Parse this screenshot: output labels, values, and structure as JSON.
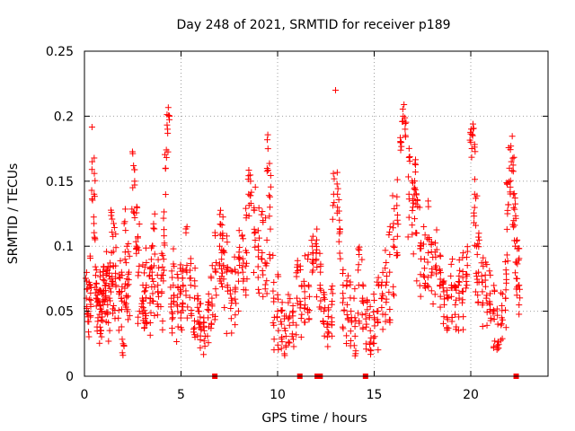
{
  "chart_data": {
    "type": "scatter",
    "title": "Day 248 of 2021, SRMTID for receiver p189",
    "xlabel": "GPS time / hours",
    "ylabel": "SRMTID / TECUs",
    "xlim": [
      0,
      24
    ],
    "ylim": [
      0,
      0.25
    ],
    "x_ticks": [
      0,
      5,
      10,
      15,
      20
    ],
    "x_tick_labels": [
      "0",
      "5",
      "10",
      "15",
      "20"
    ],
    "y_ticks": [
      0,
      0.05,
      0.1,
      0.15,
      0.2,
      0.25
    ],
    "y_tick_labels": [
      "0",
      "0.05",
      "0.1",
      "0.15",
      "0.2",
      "0.25"
    ],
    "grid": true,
    "marker": "plus",
    "color": "#ff0000",
    "series": [
      {
        "name": "SRMTID",
        "x": [
          0.1,
          0.2,
          0.3,
          0.4,
          0.5,
          0.55,
          0.6,
          0.7,
          0.8,
          0.9,
          1.0,
          1.1,
          1.2,
          1.3,
          1.4,
          1.5,
          1.6,
          1.8,
          1.9,
          2.0,
          2.1,
          2.2,
          2.3,
          2.5,
          2.6,
          2.7,
          2.8,
          3.0,
          3.1,
          3.2,
          3.4,
          3.5,
          3.6,
          3.8,
          4.0,
          4.1,
          4.2,
          4.3,
          4.4,
          4.5,
          4.6,
          4.8,
          5.0,
          5.1,
          5.3,
          5.5,
          5.7,
          5.9,
          6.0,
          6.2,
          6.4,
          6.6,
          6.8,
          7.0,
          7.1,
          7.2,
          7.4,
          7.6,
          7.8,
          8.0,
          8.2,
          8.4,
          8.5,
          8.6,
          8.8,
          9.0,
          9.2,
          9.4,
          9.5,
          9.6,
          9.8,
          10.0,
          10.2,
          10.4,
          10.6,
          10.8,
          11.0,
          11.2,
          11.4,
          11.6,
          11.8,
          12.0,
          12.2,
          12.4,
          12.6,
          12.8,
          12.9,
          13.0,
          13.1,
          13.2,
          13.4,
          13.6,
          13.8,
          14.0,
          14.2,
          14.4,
          14.6,
          14.8,
          15.0,
          15.2,
          15.4,
          15.6,
          15.8,
          16.0,
          16.2,
          16.4,
          16.5,
          16.6,
          16.8,
          17.0,
          17.1,
          17.2,
          17.4,
          17.6,
          17.8,
          18.0,
          18.2,
          18.4,
          18.6,
          18.8,
          19.0,
          19.2,
          19.4,
          19.6,
          19.8,
          20.0,
          20.1,
          20.2,
          20.3,
          20.4,
          20.6,
          20.8,
          21.0,
          21.2,
          21.4,
          21.6,
          21.8,
          21.9,
          22.0,
          22.1,
          22.2,
          22.3,
          22.4,
          22.5
        ],
        "y": [
          0.06,
          0.05,
          0.07,
          0.165,
          0.14,
          0.105,
          0.06,
          0.045,
          0.055,
          0.05,
          0.065,
          0.07,
          0.055,
          0.06,
          0.095,
          0.085,
          0.075,
          0.065,
          0.06,
          0.025,
          0.09,
          0.075,
          0.08,
          0.145,
          0.15,
          0.1,
          0.08,
          0.06,
          0.065,
          0.07,
          0.06,
          0.08,
          0.085,
          0.07,
          0.065,
          0.09,
          0.16,
          0.19,
          0.2,
          0.06,
          0.07,
          0.055,
          0.065,
          0.07,
          0.08,
          0.07,
          0.06,
          0.05,
          0.04,
          0.035,
          0.045,
          0.06,
          0.08,
          0.1,
          0.09,
          0.085,
          0.07,
          0.06,
          0.065,
          0.09,
          0.08,
          0.095,
          0.14,
          0.15,
          0.11,
          0.1,
          0.095,
          0.085,
          0.175,
          0.13,
          0.06,
          0.05,
          0.04,
          0.035,
          0.045,
          0.05,
          0.06,
          0.055,
          0.065,
          0.07,
          0.1,
          0.09,
          0.07,
          0.05,
          0.04,
          0.045,
          0.14,
          0.22,
          0.14,
          0.12,
          0.06,
          0.055,
          0.05,
          0.045,
          0.07,
          0.06,
          0.04,
          0.035,
          0.045,
          0.05,
          0.06,
          0.07,
          0.08,
          0.1,
          0.12,
          0.18,
          0.2,
          0.19,
          0.14,
          0.13,
          0.145,
          0.11,
          0.1,
          0.09,
          0.095,
          0.08,
          0.085,
          0.07,
          0.065,
          0.06,
          0.07,
          0.055,
          0.06,
          0.065,
          0.07,
          0.18,
          0.185,
          0.14,
          0.1,
          0.08,
          0.065,
          0.06,
          0.055,
          0.05,
          0.04,
          0.045,
          0.06,
          0.125,
          0.16,
          0.165,
          0.14,
          0.1,
          0.075,
          0.07
        ],
        "y_spread": [
          0.02,
          0.03,
          0.03,
          0.03,
          0.04,
          0.05,
          0.03,
          0.02,
          0.03,
          0.02,
          0.02,
          0.03,
          0.03,
          0.03,
          0.04,
          0.04,
          0.04,
          0.03,
          0.03,
          0.01,
          0.04,
          0.03,
          0.04,
          0.03,
          0.03,
          0.04,
          0.04,
          0.03,
          0.03,
          0.03,
          0.03,
          0.03,
          0.04,
          0.03,
          0.03,
          0.04,
          0.03,
          0.02,
          0.01,
          0.03,
          0.03,
          0.03,
          0.03,
          0.03,
          0.04,
          0.03,
          0.03,
          0.02,
          0.02,
          0.02,
          0.02,
          0.03,
          0.04,
          0.03,
          0.03,
          0.04,
          0.04,
          0.03,
          0.03,
          0.04,
          0.04,
          0.04,
          0.02,
          0.02,
          0.04,
          0.04,
          0.04,
          0.04,
          0.02,
          0.04,
          0.04,
          0.03,
          0.02,
          0.02,
          0.02,
          0.03,
          0.03,
          0.03,
          0.03,
          0.03,
          0.02,
          0.03,
          0.03,
          0.02,
          0.02,
          0.03,
          0.02,
          0.0,
          0.02,
          0.03,
          0.03,
          0.03,
          0.03,
          0.03,
          0.03,
          0.03,
          0.02,
          0.02,
          0.02,
          0.03,
          0.03,
          0.03,
          0.04,
          0.04,
          0.04,
          0.02,
          0.01,
          0.01,
          0.04,
          0.04,
          0.03,
          0.04,
          0.04,
          0.04,
          0.04,
          0.03,
          0.03,
          0.03,
          0.03,
          0.03,
          0.03,
          0.02,
          0.03,
          0.03,
          0.03,
          0.02,
          0.01,
          0.04,
          0.04,
          0.03,
          0.03,
          0.03,
          0.03,
          0.03,
          0.02,
          0.02,
          0.03,
          0.04,
          0.02,
          0.02,
          0.03,
          0.04,
          0.03,
          0.03
        ],
        "point_count": [
          8,
          10,
          12,
          6,
          6,
          6,
          10,
          10,
          12,
          12,
          12,
          12,
          10,
          10,
          10,
          10,
          10,
          10,
          10,
          6,
          10,
          10,
          10,
          6,
          6,
          10,
          10,
          10,
          10,
          10,
          10,
          10,
          10,
          10,
          10,
          10,
          6,
          6,
          4,
          10,
          10,
          10,
          10,
          10,
          10,
          10,
          10,
          10,
          10,
          10,
          10,
          10,
          10,
          10,
          10,
          10,
          10,
          10,
          10,
          10,
          10,
          10,
          6,
          6,
          10,
          10,
          10,
          10,
          6,
          10,
          10,
          10,
          10,
          10,
          10,
          10,
          10,
          10,
          10,
          10,
          10,
          10,
          10,
          10,
          10,
          10,
          6,
          1,
          6,
          10,
          10,
          10,
          10,
          10,
          10,
          10,
          10,
          10,
          10,
          10,
          10,
          10,
          10,
          10,
          10,
          6,
          6,
          6,
          10,
          10,
          10,
          10,
          10,
          10,
          10,
          10,
          10,
          10,
          10,
          10,
          10,
          10,
          10,
          10,
          10,
          6,
          6,
          10,
          10,
          10,
          10,
          10,
          10,
          10,
          10,
          10,
          10,
          10,
          6,
          6,
          10,
          10,
          10,
          10
        ]
      }
    ],
    "gap_markers_x": [
      6.75,
      11.15,
      12.05,
      12.2,
      14.55,
      22.35
    ],
    "gap_marker_y": 0
  }
}
